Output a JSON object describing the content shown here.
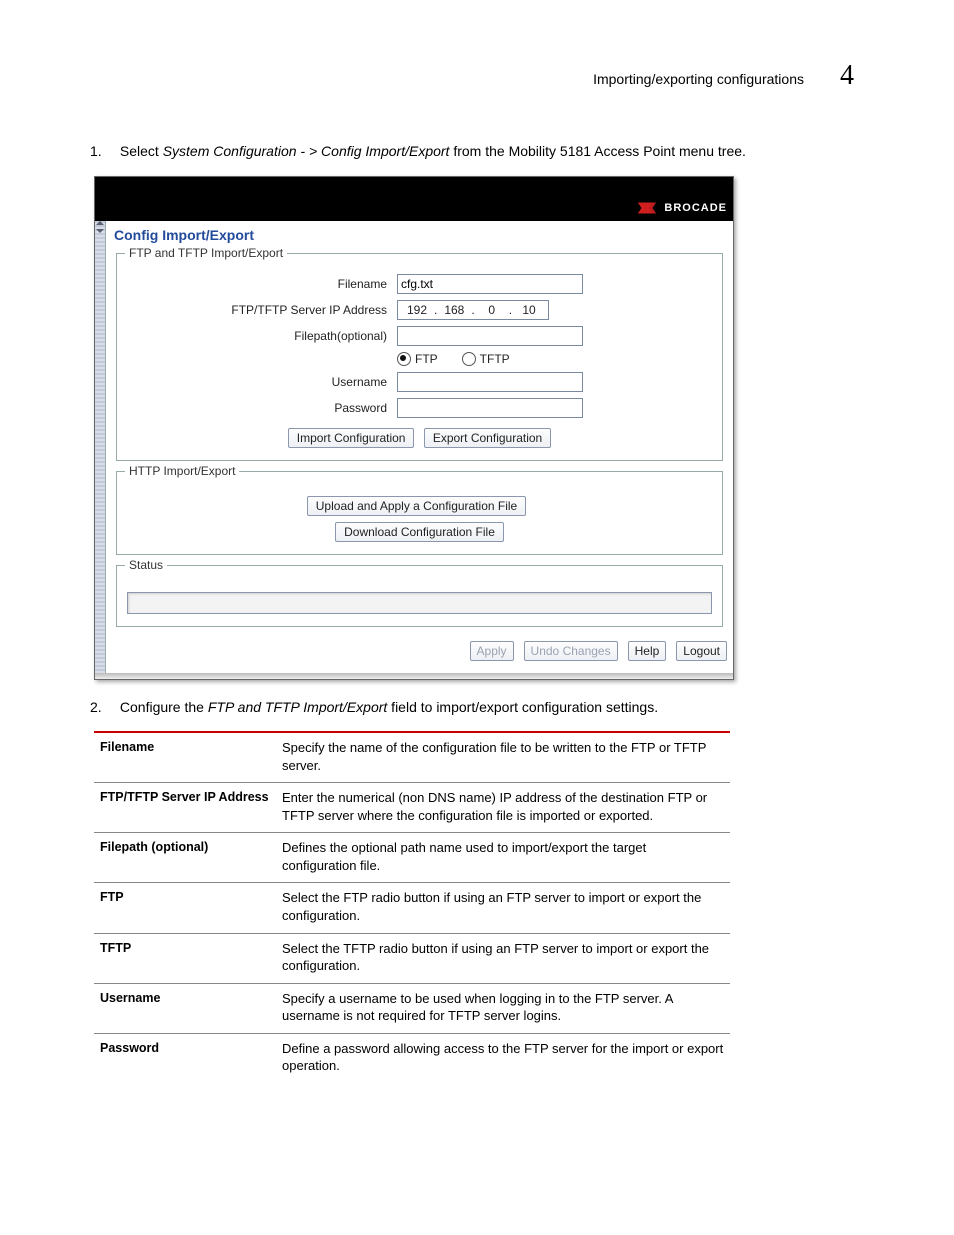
{
  "header": {
    "title": "Importing/exporting configurations",
    "chapter_number": "4"
  },
  "step1": {
    "num": "1.",
    "prefix": "Select ",
    "emph": "System Configuration - > Config Import/Export",
    "suffix": " from the Mobility 5181 Access Point menu tree."
  },
  "step2": {
    "num": "2.",
    "prefix": "Configure the ",
    "emph": "FTP and TFTP Import/Export",
    "suffix": " field to import/export configuration settings."
  },
  "shot": {
    "brand": "BROCADE",
    "page_title": "Config Import/Export",
    "fs1_legend": "FTP and TFTP Import/Export",
    "fs2_legend": "HTTP Import/Export",
    "fs3_legend": "Status",
    "labels": {
      "filename": "Filename",
      "server_ip": "FTP/TFTP Server IP Address",
      "filepath": "Filepath(optional)",
      "username": "Username",
      "password": "Password"
    },
    "values": {
      "filename": "cfg.txt",
      "ip": [
        "192",
        "168",
        "0",
        "10"
      ],
      "filepath": "",
      "username": "",
      "password": ""
    },
    "radios": {
      "ftp": "FTP",
      "tftp": "TFTP",
      "selected": "ftp"
    },
    "buttons": {
      "import_cfg": "Import Configuration",
      "export_cfg": "Export Configuration",
      "upload_apply": "Upload and Apply a Configuration File",
      "download_cfg": "Download Configuration File",
      "apply": "Apply",
      "undo": "Undo Changes",
      "help": "Help",
      "logout": "Logout"
    }
  },
  "table": [
    {
      "key": "Filename",
      "val": "Specify the name of the configuration file to be written to the FTP or TFTP server."
    },
    {
      "key": "FTP/TFTP Server IP Address",
      "val": "Enter the numerical (non DNS name) IP address of the destination FTP or TFTP server where the configuration file is imported or exported."
    },
    {
      "key": "Filepath (optional)",
      "val": "Defines the optional path name used to import/export the target configuration file."
    },
    {
      "key": "FTP",
      "val": "Select the FTP radio button if using an FTP server to import or export the configuration."
    },
    {
      "key": "TFTP",
      "val": "Select the TFTP radio button if using an FTP server to import or export the configuration."
    },
    {
      "key": "Username",
      "val": "Specify a username to be used when logging in to the FTP server. A username is not required for TFTP server logins."
    },
    {
      "key": "Password",
      "val": "Define a password allowing access to the FTP server for the import or export operation."
    }
  ]
}
